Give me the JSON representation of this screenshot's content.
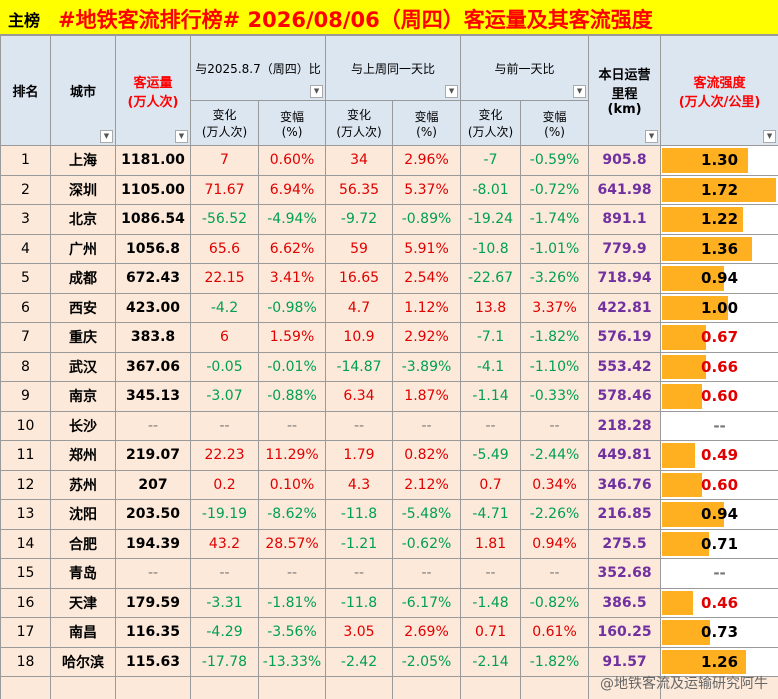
{
  "header": {
    "tag": "主榜",
    "title": "#地铁客流排行榜# 2026/08/06（周四）客运量及其客流强度"
  },
  "table": {
    "columns": {
      "rank": "排名",
      "city": "城市",
      "ridership": "客运量\n(万人次)",
      "distance": "本日运营\n里程\n(km)",
      "intensity": "客流强度\n(万人次/公里)"
    },
    "groups": [
      "与2025.8.7（周四）比",
      "与上周同一天比",
      "与前一天比"
    ],
    "subheaders": [
      "变化\n(万人次)",
      "变幅\n(%)"
    ],
    "rows": [
      [
        "1",
        "上海",
        "1181.00",
        "7",
        "0.60%",
        "34",
        "2.96%",
        "-7",
        "-0.59%",
        "905.8",
        "1.30"
      ],
      [
        "2",
        "深圳",
        "1105.00",
        "71.67",
        "6.94%",
        "56.35",
        "5.37%",
        "-8.01",
        "-0.72%",
        "641.98",
        "1.72"
      ],
      [
        "3",
        "北京",
        "1086.54",
        "-56.52",
        "-4.94%",
        "-9.72",
        "-0.89%",
        "-19.24",
        "-1.74%",
        "891.1",
        "1.22"
      ],
      [
        "4",
        "广州",
        "1056.8",
        "65.6",
        "6.62%",
        "59",
        "5.91%",
        "-10.8",
        "-1.01%",
        "779.9",
        "1.36"
      ],
      [
        "5",
        "成都",
        "672.43",
        "22.15",
        "3.41%",
        "16.65",
        "2.54%",
        "-22.67",
        "-3.26%",
        "718.94",
        "0.94"
      ],
      [
        "6",
        "西安",
        "423.00",
        "-4.2",
        "-0.98%",
        "4.7",
        "1.12%",
        "13.8",
        "3.37%",
        "422.81",
        "1.00"
      ],
      [
        "7",
        "重庆",
        "383.8",
        "6",
        "1.59%",
        "10.9",
        "2.92%",
        "-7.1",
        "-1.82%",
        "576.19",
        "0.67"
      ],
      [
        "8",
        "武汉",
        "367.06",
        "-0.05",
        "-0.01%",
        "-14.87",
        "-3.89%",
        "-4.1",
        "-1.10%",
        "553.42",
        "0.66"
      ],
      [
        "9",
        "南京",
        "345.13",
        "-3.07",
        "-0.88%",
        "6.34",
        "1.87%",
        "-1.14",
        "-0.33%",
        "578.46",
        "0.60"
      ],
      [
        "10",
        "长沙",
        "--",
        "--",
        "--",
        "--",
        "--",
        "--",
        "--",
        "218.28",
        "--"
      ],
      [
        "11",
        "郑州",
        "219.07",
        "22.23",
        "11.29%",
        "1.79",
        "0.82%",
        "-5.49",
        "-2.44%",
        "449.81",
        "0.49"
      ],
      [
        "12",
        "苏州",
        "207",
        "0.2",
        "0.10%",
        "4.3",
        "2.12%",
        "0.7",
        "0.34%",
        "346.76",
        "0.60"
      ],
      [
        "13",
        "沈阳",
        "203.50",
        "-19.19",
        "-8.62%",
        "-11.8",
        "-5.48%",
        "-4.71",
        "-2.26%",
        "216.85",
        "0.94"
      ],
      [
        "14",
        "合肥",
        "194.39",
        "43.2",
        "28.57%",
        "-1.21",
        "-0.62%",
        "1.81",
        "0.94%",
        "275.5",
        "0.71"
      ],
      [
        "15",
        "青岛",
        "--",
        "--",
        "--",
        "--",
        "--",
        "--",
        "--",
        "352.68",
        "--"
      ],
      [
        "16",
        "天津",
        "179.59",
        "-3.31",
        "-1.81%",
        "-11.8",
        "-6.17%",
        "-1.48",
        "-0.82%",
        "386.5",
        "0.46"
      ],
      [
        "17",
        "南昌",
        "116.35",
        "-4.29",
        "-3.56%",
        "3.05",
        "2.69%",
        "0.71",
        "0.61%",
        "160.25",
        "0.73"
      ],
      [
        "18",
        "哈尔滨",
        "115.63",
        "-17.78",
        "-13.33%",
        "-2.42",
        "-2.05%",
        "-2.14",
        "-1.82%",
        "91.57",
        "1.26"
      ]
    ]
  },
  "watermark": "@地铁客流及运输研究阿牛"
}
